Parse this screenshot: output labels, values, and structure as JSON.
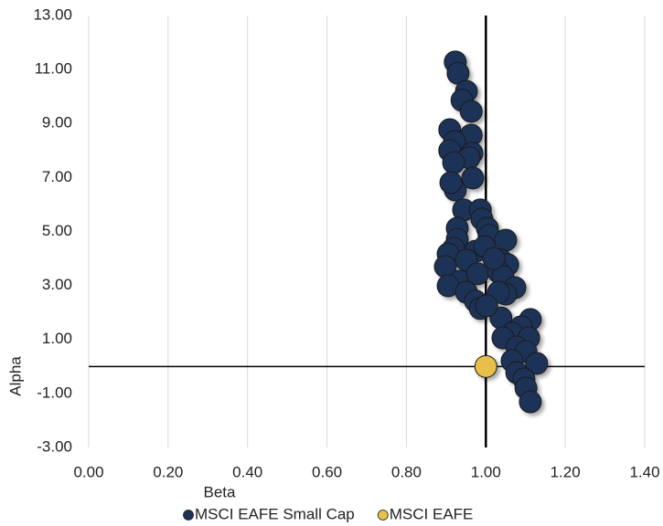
{
  "chart_data": {
    "type": "scatter",
    "x_label": "Beta",
    "y_label": "Alpha",
    "xlim": [
      0,
      1.4
    ],
    "ylim": [
      -3,
      13
    ],
    "xticks": [
      {
        "value": 0,
        "label": "0.00"
      },
      {
        "value": 0.2,
        "label": "0.20"
      },
      {
        "value": 0.4,
        "label": "0.40"
      },
      {
        "value": 0.6,
        "label": "0.60"
      },
      {
        "value": 0.8,
        "label": "0.80"
      },
      {
        "value": 1,
        "label": "1.00"
      },
      {
        "value": 1.2,
        "label": "1.20"
      },
      {
        "value": 1.4,
        "label": "1.40"
      }
    ],
    "yticks": [
      {
        "value": 13,
        "label": "13.00"
      },
      {
        "value": 11,
        "label": "11.00"
      },
      {
        "value": 9,
        "label": "9.00"
      },
      {
        "value": 7,
        "label": "7.00"
      },
      {
        "value": 5,
        "label": "5.00"
      },
      {
        "value": 3,
        "label": "3.00"
      },
      {
        "value": 1,
        "label": "1.00"
      },
      {
        "value": -1,
        "label": "-1.00"
      },
      {
        "value": -3,
        "label": "-3.00"
      }
    ],
    "vertical_grid": true,
    "y_axis_at": 1,
    "legend": "bottom",
    "series": [
      {
        "name": "MSCI EAFE Small Cap",
        "color": "#1c3157",
        "x": [
          0.923,
          0.93,
          0.951,
          0.94,
          0.963,
          0.909,
          0.963,
          0.921,
          0.909,
          0.965,
          0.958,
          0.919,
          0.923,
          0.912,
          0.967,
          0.944,
          0.986,
          0.99,
          0.928,
          1.004,
          1.008,
          0.928,
          0.919,
          0.905,
          0.974,
          0.997,
          1.05,
          0.898,
          0.951,
          1.038,
          1.055,
          0.935,
          0.905,
          0.979,
          1.032,
          1.043,
          1.073,
          0.951,
          0.974,
          0.986,
          1.05,
          1.038,
          1.112,
          1.089,
          1.066,
          1.043,
          1.108,
          1.078,
          1.101,
          1.066,
          1.128,
          1.078,
          1.096,
          1.101,
          1.112,
          1.02,
          1.032,
          1.002
        ],
        "values": [
          11.28,
          10.86,
          10.19,
          9.86,
          9.45,
          8.77,
          8.57,
          8.33,
          8.0,
          7.9,
          7.73,
          7.55,
          6.54,
          6.81,
          6.98,
          5.8,
          5.8,
          5.46,
          5.12,
          5.12,
          4.85,
          4.71,
          4.37,
          4.17,
          4.27,
          4.44,
          4.68,
          3.7,
          3.94,
          3.94,
          3.77,
          3.16,
          2.99,
          3.43,
          3.5,
          3.33,
          2.92,
          2.75,
          2.42,
          2.15,
          2.68,
          1.8,
          1.74,
          1.47,
          1.23,
          1.06,
          1.06,
          0.72,
          0.55,
          0.21,
          0.11,
          -0.23,
          -0.46,
          -0.8,
          -1.31,
          4.0,
          2.75,
          2.25
        ]
      },
      {
        "name": "MSCI EAFE",
        "color": "#e8c04a",
        "x": [
          1.0
        ],
        "values": [
          0.0
        ]
      }
    ]
  }
}
